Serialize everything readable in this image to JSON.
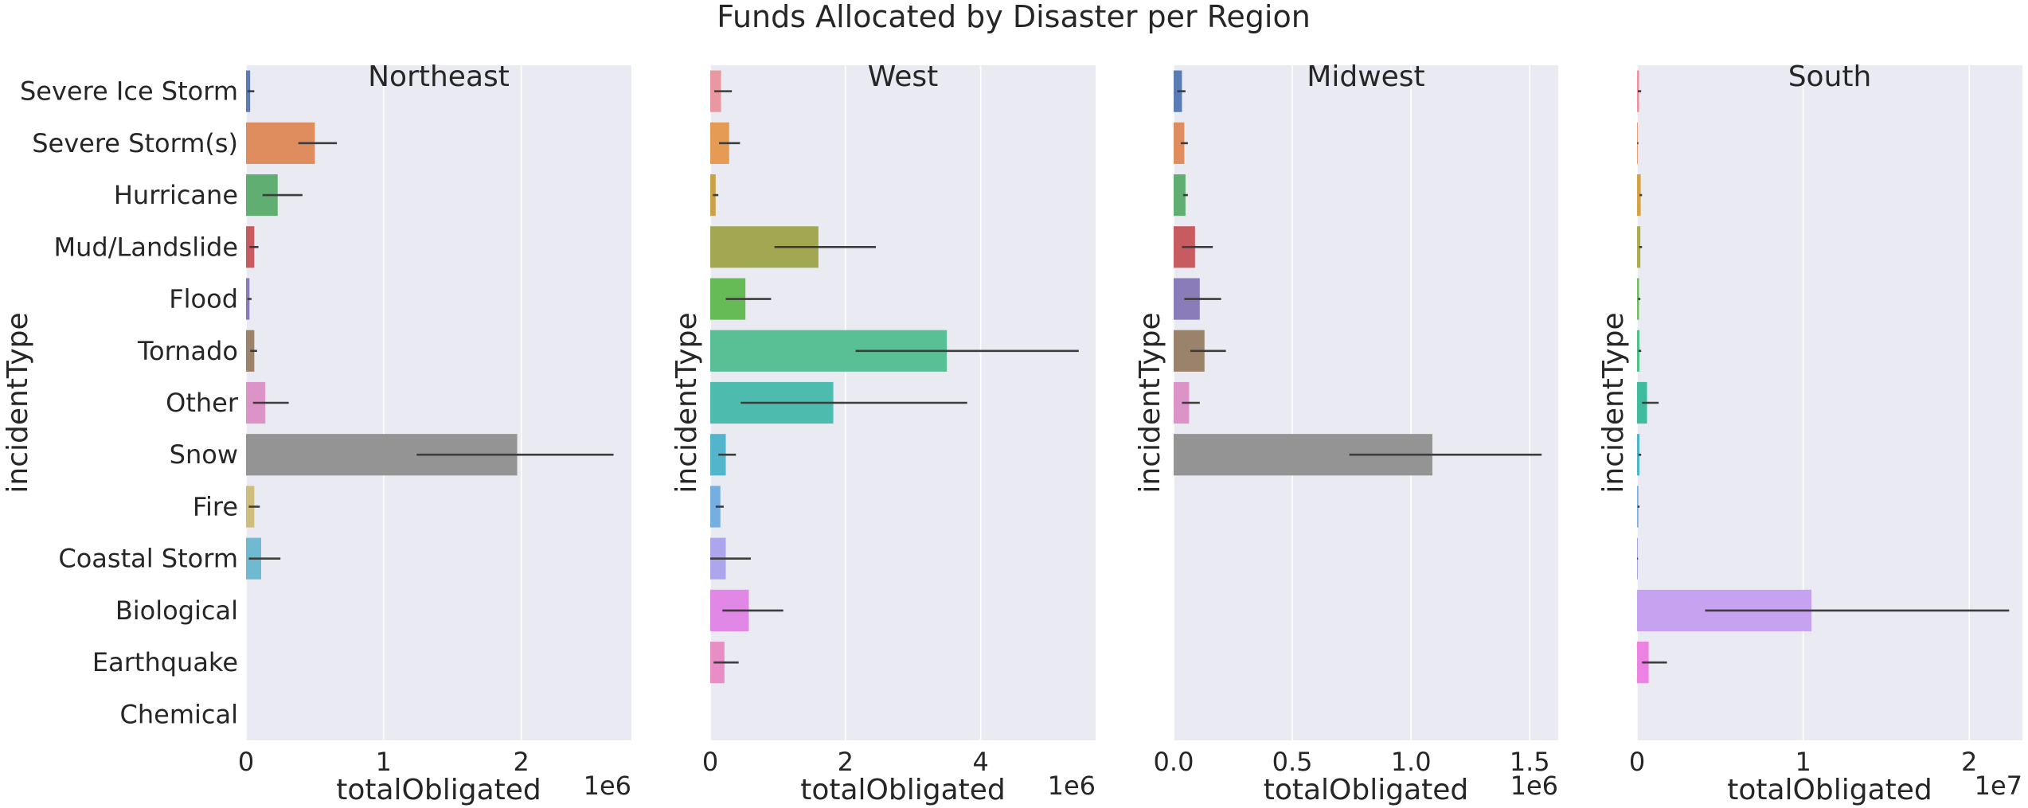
{
  "title": "Funds Allocated by Disaster per Region",
  "chart_data": {
    "type": "bar",
    "orientation": "horizontal",
    "title": "Funds Allocated by Disaster per Region",
    "categories": [
      "Severe Ice Storm",
      "Severe Storm(s)",
      "Hurricane",
      "Mud/Landslide",
      "Flood",
      "Tornado",
      "Other",
      "Snow",
      "Fire",
      "Coastal Storm",
      "Biological",
      "Earthquake",
      "Chemical"
    ],
    "ylabel": "incidentType",
    "xlabel": "totalObligated",
    "grid": true,
    "colors": [
      "#4c72b0",
      "#dd8452",
      "#55a868",
      "#c44e52",
      "#8172b3",
      "#937860",
      "#da8bc3",
      "#8c8c8c",
      "#ccb974",
      "#64b5cd",
      "#c8a2f0",
      "#e879e0",
      "#a0a0a0"
    ],
    "west_colors": [
      "#e8909a",
      "#e59448",
      "#c79a3a",
      "#9aa243",
      "#5ab64a",
      "#4cbb8c",
      "#3fb6a8",
      "#45b0c8",
      "#6aa8e0",
      "#a8a0ec",
      "#e07ee4",
      "#e885c0",
      "#a0a0a0"
    ],
    "south_colors": [
      "#f08898",
      "#e89870",
      "#cf9a3a",
      "#a8a640",
      "#64b850",
      "#42ba84",
      "#2fb796",
      "#40b0c0",
      "#70a8e0",
      "#a0a0e8",
      "#c29bf0",
      "#ec78e0",
      "#a0a0a0"
    ],
    "panels": [
      {
        "title": "Northeast",
        "xlim": [
          0,
          2800000
        ],
        "xticks": [
          0,
          1000000,
          2000000
        ],
        "xtick_labels": [
          "0",
          "1",
          "2"
        ],
        "offset": "1e6",
        "values": [
          30000,
          500000,
          230000,
          60000,
          25000,
          60000,
          140000,
          1970000,
          60000,
          110000,
          null,
          null,
          null
        ],
        "errors": [
          [
            10000,
            60000
          ],
          [
            380000,
            660000
          ],
          [
            120000,
            410000
          ],
          [
            25000,
            90000
          ],
          [
            10000,
            40000
          ],
          [
            30000,
            80000
          ],
          [
            50000,
            310000
          ],
          [
            1240000,
            2670000
          ],
          [
            20000,
            100000
          ],
          [
            20000,
            250000
          ],
          null,
          null,
          null
        ]
      },
      {
        "title": "West",
        "xlim": [
          0,
          5700000
        ],
        "xticks": [
          0,
          2000000,
          4000000
        ],
        "xtick_labels": [
          "0",
          "2",
          "4"
        ],
        "offset": "1e6",
        "values": [
          160000,
          280000,
          80000,
          1600000,
          520000,
          3500000,
          1820000,
          230000,
          150000,
          230000,
          570000,
          210000,
          null
        ],
        "errors": [
          [
            60000,
            320000
          ],
          [
            130000,
            440000
          ],
          [
            40000,
            120000
          ],
          [
            950000,
            2450000
          ],
          [
            230000,
            900000
          ],
          [
            2150000,
            5450000
          ],
          [
            450000,
            3800000
          ],
          [
            120000,
            380000
          ],
          [
            80000,
            200000
          ],
          [
            0,
            600000
          ],
          [
            180000,
            1080000
          ],
          [
            50000,
            420000
          ],
          null
        ]
      },
      {
        "title": "Midwest",
        "xlim": [
          0,
          1620000
        ],
        "xticks": [
          0,
          500000,
          1000000,
          1500000
        ],
        "xtick_labels": [
          "0.0",
          "0.5",
          "1.0",
          "1.5"
        ],
        "offset": "1e6",
        "values": [
          35000,
          45000,
          50000,
          90000,
          110000,
          130000,
          65000,
          1090000,
          null,
          null,
          null,
          null,
          null
        ],
        "errors": [
          [
            15000,
            50000
          ],
          [
            30000,
            60000
          ],
          [
            40000,
            60000
          ],
          [
            35000,
            165000
          ],
          [
            45000,
            200000
          ],
          [
            70000,
            220000
          ],
          [
            35000,
            110000
          ],
          [
            740000,
            1550000
          ],
          null,
          null,
          null,
          null,
          null
        ]
      },
      {
        "title": "South",
        "xlim": [
          0,
          23200000
        ],
        "xticks": [
          0,
          10000000,
          20000000
        ],
        "xtick_labels": [
          "0",
          "1",
          "2"
        ],
        "offset": "1e7",
        "values": [
          120000,
          40000,
          220000,
          200000,
          120000,
          150000,
          600000,
          150000,
          80000,
          30000,
          10500000,
          700000,
          null
        ],
        "errors": [
          [
            50000,
            250000
          ],
          [
            10000,
            80000
          ],
          [
            150000,
            300000
          ],
          [
            120000,
            300000
          ],
          [
            60000,
            200000
          ],
          [
            80000,
            250000
          ],
          [
            300000,
            1300000
          ],
          [
            80000,
            250000
          ],
          [
            30000,
            150000
          ],
          [
            10000,
            60000
          ],
          [
            4100000,
            22400000
          ],
          [
            300000,
            1800000
          ],
          null
        ]
      }
    ]
  }
}
